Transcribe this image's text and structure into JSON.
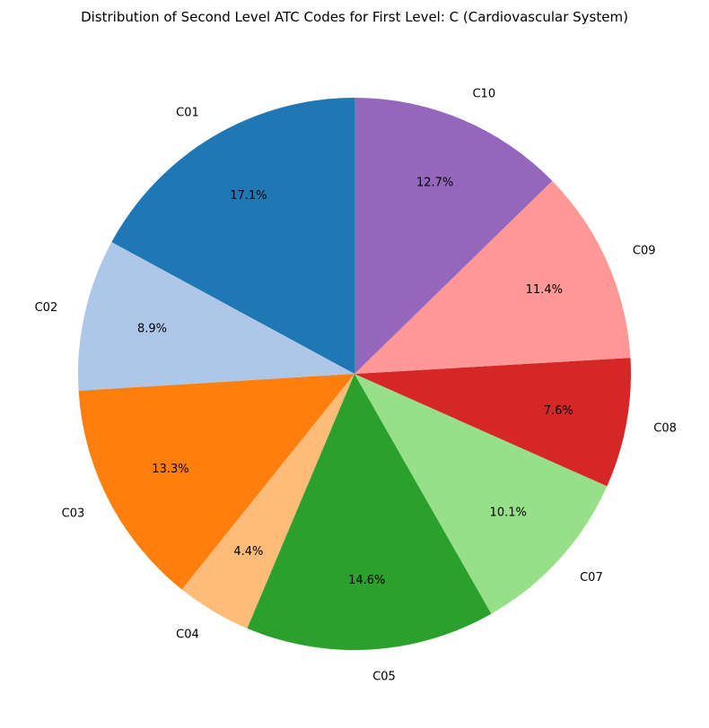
{
  "chart_data": {
    "type": "pie",
    "title": "Distribution of Second Level ATC Codes for First Level: C (Cardiovascular System)",
    "categories": [
      "C01",
      "C02",
      "C03",
      "C04",
      "C05",
      "C07",
      "C08",
      "C09",
      "C10"
    ],
    "values": [
      17.1,
      8.9,
      13.3,
      4.4,
      14.6,
      10.1,
      7.6,
      11.4,
      12.7
    ],
    "percent_labels": [
      "17.1%",
      "8.9%",
      "13.3%",
      "4.4%",
      "14.6%",
      "10.1%",
      "7.6%",
      "11.4%",
      "12.7%"
    ],
    "colors": [
      "#1f77b4",
      "#aec7e8",
      "#ff7f0e",
      "#ffbb78",
      "#2ca02c",
      "#98df8a",
      "#d62728",
      "#ff9896",
      "#9467bd"
    ],
    "start_angle_deg": 90,
    "direction": "counterclockwise",
    "legend": "none"
  }
}
